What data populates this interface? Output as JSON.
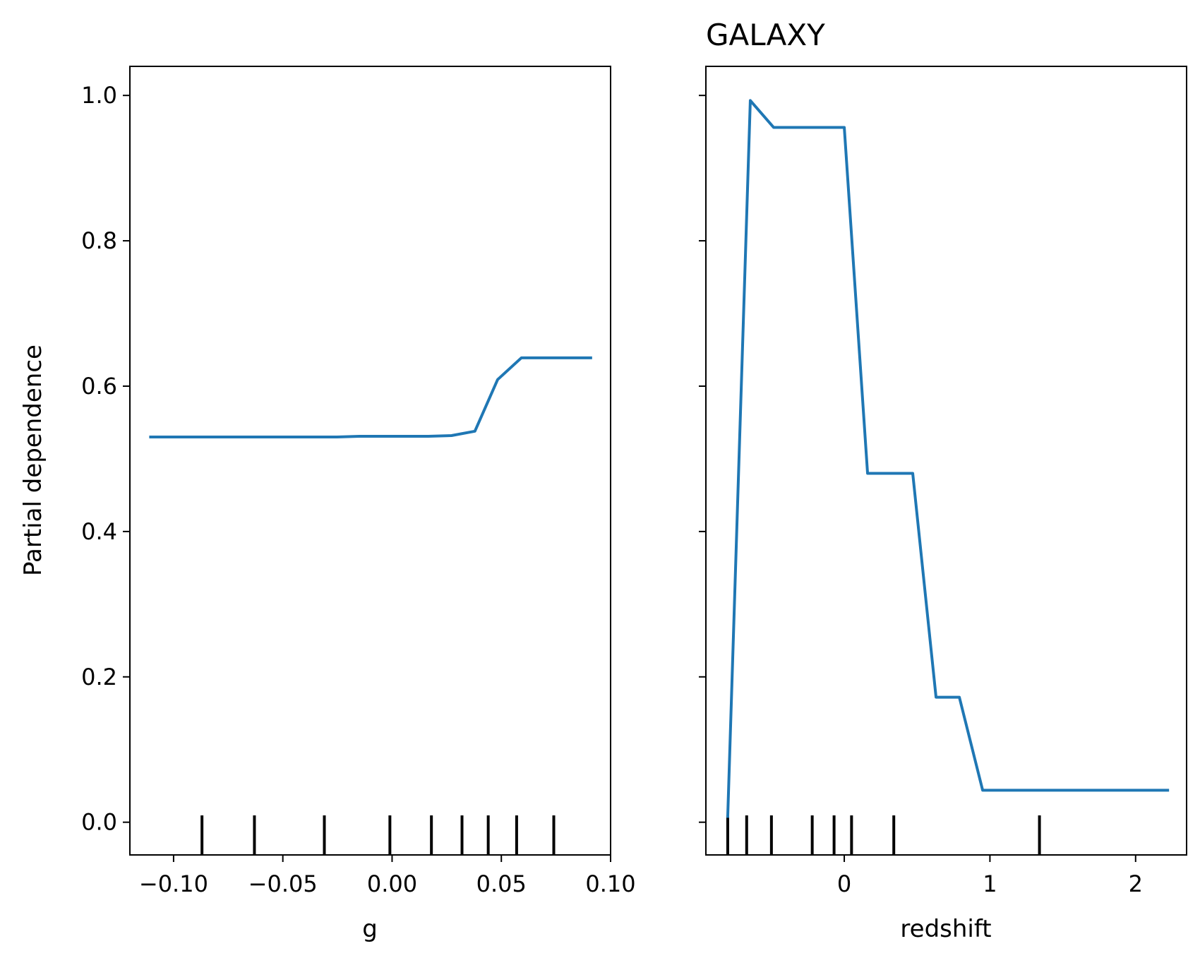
{
  "figure": {
    "ylabel": "Partial dependence",
    "line_color": "#1f77b4",
    "axes_color": "#000000"
  },
  "chart_data": [
    {
      "type": "line",
      "title": "",
      "xlabel": "g",
      "ylabel": "Partial dependence",
      "xlim": [
        -0.12,
        0.1
      ],
      "ylim": [
        -0.045,
        1.04
      ],
      "xticks": [
        -0.1,
        -0.05,
        0.0,
        0.05,
        0.1
      ],
      "xtick_labels": [
        "−0.10",
        "−0.05",
        "0.00",
        "0.05",
        "0.10"
      ],
      "yticks": [
        0.0,
        0.2,
        0.4,
        0.6,
        0.8,
        1.0
      ],
      "ytick_labels": [
        "0.0",
        "0.2",
        "0.4",
        "0.6",
        "0.8",
        "1.0"
      ],
      "show_ytick_labels": true,
      "grid": false,
      "x": [
        -0.1105,
        -0.0252,
        -0.0148,
        0.0166,
        0.0272,
        0.0379,
        0.0483,
        0.0592,
        0.0697,
        0.0909
      ],
      "y": [
        0.53,
        0.53,
        0.531,
        0.531,
        0.532,
        0.538,
        0.609,
        0.639,
        0.639,
        0.639
      ],
      "deciles": [
        -0.087,
        -0.063,
        -0.031,
        -0.001,
        0.018,
        0.032,
        0.044,
        0.057,
        0.074
      ]
    },
    {
      "type": "line",
      "title": "GALAXY",
      "xlabel": "redshift",
      "ylabel": "",
      "xlim": [
        -0.95,
        2.35
      ],
      "ylim": [
        -0.045,
        1.04
      ],
      "xticks": [
        0,
        1,
        2
      ],
      "xtick_labels": [
        "0",
        "1",
        "2"
      ],
      "yticks": [
        0.0,
        0.2,
        0.4,
        0.6,
        0.8,
        1.0
      ],
      "ytick_labels": [
        "",
        "",
        "",
        "",
        "",
        ""
      ],
      "show_ytick_labels": false,
      "grid": false,
      "x": [
        -0.8,
        -0.645,
        -0.485,
        0.0,
        0.16,
        0.47,
        0.63,
        0.79,
        0.95,
        2.22
      ],
      "y": [
        0.008,
        0.993,
        0.956,
        0.956,
        0.48,
        0.48,
        0.172,
        0.172,
        0.044,
        0.044
      ],
      "deciles": [
        -0.8,
        -0.67,
        -0.5,
        -0.22,
        -0.07,
        0.05,
        0.34,
        1.34
      ]
    }
  ]
}
